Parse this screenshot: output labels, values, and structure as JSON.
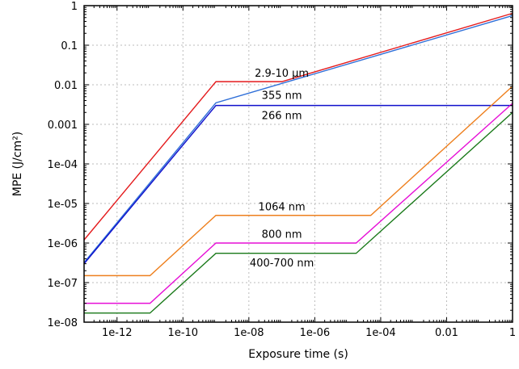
{
  "chart_data": {
    "type": "line",
    "title": "",
    "xlabel": "Exposure time (s)",
    "ylabel": "MPE (J/cm²)",
    "xscale": "log",
    "yscale": "log",
    "xlim": [
      1e-13,
      1
    ],
    "ylim": [
      1e-08,
      1
    ],
    "grid": true,
    "x_ticks": [
      {
        "value": 1e-12,
        "label": "1e-12"
      },
      {
        "value": 1e-10,
        "label": "1e-10"
      },
      {
        "value": 1e-08,
        "label": "1e-08"
      },
      {
        "value": 1e-06,
        "label": "1e-06"
      },
      {
        "value": 0.0001,
        "label": "1e-04"
      },
      {
        "value": 0.01,
        "label": "0.01"
      },
      {
        "value": 1,
        "label": "1"
      }
    ],
    "y_ticks": [
      {
        "value": 1e-08,
        "label": "1e-08"
      },
      {
        "value": 1e-07,
        "label": "1e-07"
      },
      {
        "value": 1e-06,
        "label": "1e-06"
      },
      {
        "value": 1e-05,
        "label": "1e-05"
      },
      {
        "value": 0.0001,
        "label": "1e-04"
      },
      {
        "value": 0.001,
        "label": "0.001"
      },
      {
        "value": 0.01,
        "label": "0.01"
      },
      {
        "value": 0.1,
        "label": "0.1"
      },
      {
        "value": 1,
        "label": "1"
      }
    ],
    "series": [
      {
        "name": "2.9-10 μm",
        "color": "#e41a1c",
        "x": [
          1e-13,
          1e-09,
          1e-07,
          1
        ],
        "y": [
          1.2e-06,
          0.012,
          0.012,
          0.64
        ],
        "label_at": {
          "x": 1e-07,
          "y": 0.02
        }
      },
      {
        "name": "355 nm",
        "color": "#2f6fd8",
        "x": [
          1e-13,
          1e-09,
          1
        ],
        "y": [
          3.2e-07,
          0.0035,
          0.56
        ],
        "label_at": {
          "x": 1e-07,
          "y": 0.0055
        }
      },
      {
        "name": "266 nm",
        "color": "#1010cc",
        "x": [
          1e-13,
          1e-09,
          1
        ],
        "y": [
          3e-07,
          0.003,
          0.003
        ],
        "label_at": {
          "x": 1e-07,
          "y": 0.0017
        }
      },
      {
        "name": "1064 nm",
        "color": "#ee7f1d",
        "x": [
          1e-13,
          1e-11,
          1e-09,
          5e-05,
          1
        ],
        "y": [
          1.5e-07,
          1.5e-07,
          5e-06,
          5e-06,
          0.0092
        ],
        "label_at": {
          "x": 1e-07,
          "y": 8.5e-06
        }
      },
      {
        "name": "800 nm",
        "color": "#e60ed6",
        "x": [
          1e-13,
          1e-11,
          1e-09,
          1.8e-05,
          1
        ],
        "y": [
          3e-08,
          3e-08,
          1e-06,
          1e-06,
          0.0034
        ],
        "label_at": {
          "x": 1e-07,
          "y": 1.7e-06
        }
      },
      {
        "name": "400-700 nm",
        "color": "#1a7a1a",
        "x": [
          1e-13,
          1e-11,
          1e-09,
          1.8e-05,
          1
        ],
        "y": [
          1.7e-08,
          1.7e-08,
          5.5e-07,
          5.5e-07,
          0.002
        ],
        "label_at": {
          "x": 1e-07,
          "y": 3.2e-07
        }
      }
    ]
  }
}
